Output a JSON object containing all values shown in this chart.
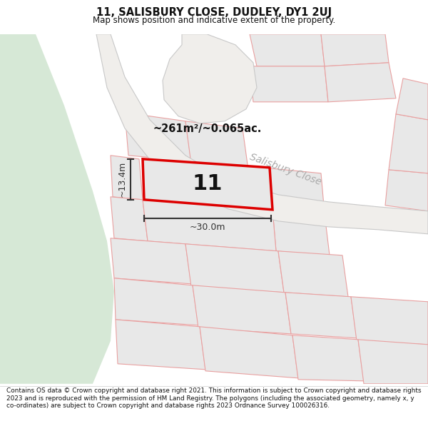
{
  "title": "11, SALISBURY CLOSE, DUDLEY, DY1 2UJ",
  "subtitle": "Map shows position and indicative extent of the property.",
  "footer": "Contains OS data © Crown copyright and database right 2021. This information is subject to Crown copyright and database rights 2023 and is reproduced with the permission of HM Land Registry. The polygons (including the associated geometry, namely x, y co-ordinates) are subject to Crown copyright and database rights 2023 Ordnance Survey 100026316.",
  "road_label": "Salisbury Close",
  "area_label": "~261m²/~0.065ac.",
  "plot_number": "11",
  "dim_width": "~30.0m",
  "dim_height": "~13.4m",
  "map_bg": "#ffffff",
  "green_color": "#d6e8d6",
  "road_fill": "#f0eeeb",
  "road_edge": "#c8c8c8",
  "plot_fill": "#e8e8e8",
  "plot_edge": "#e8a0a0",
  "highlight_fill": "#e8e8e8",
  "highlight_edge": "#dd0000",
  "dim_color": "#333333",
  "road_label_color": "#aaaaaa",
  "text_color": "#111111"
}
